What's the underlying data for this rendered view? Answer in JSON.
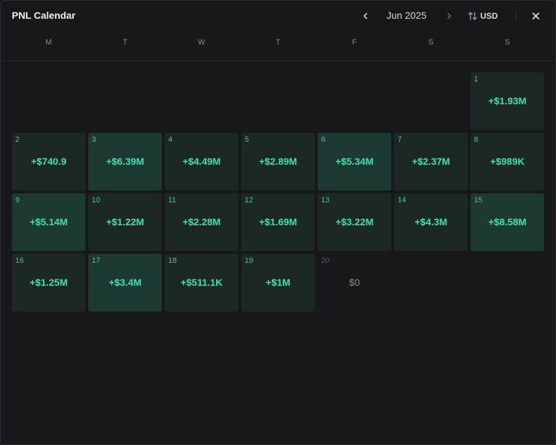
{
  "header": {
    "title": "PNL Calendar",
    "month": "Jun 2025",
    "currency": "USD"
  },
  "weekdays": [
    "M",
    "T",
    "W",
    "T",
    "F",
    "S",
    "S"
  ],
  "days": [
    {
      "day": "1",
      "value": "+$1.93M"
    },
    {
      "day": "2",
      "value": "+$740.9"
    },
    {
      "day": "3",
      "value": "+$6.39M"
    },
    {
      "day": "4",
      "value": "+$4.49M"
    },
    {
      "day": "5",
      "value": "+$2.89M"
    },
    {
      "day": "6",
      "value": "+$5.34M"
    },
    {
      "day": "7",
      "value": "+$2.37M"
    },
    {
      "day": "8",
      "value": "+$989K"
    },
    {
      "day": "9",
      "value": "+$5.14M"
    },
    {
      "day": "10",
      "value": "+$1.22M"
    },
    {
      "day": "11",
      "value": "+$2.28M"
    },
    {
      "day": "12",
      "value": "+$1.69M"
    },
    {
      "day": "13",
      "value": "+$3.22M"
    },
    {
      "day": "14",
      "value": "+$4.3M"
    },
    {
      "day": "15",
      "value": "+$8.58M"
    },
    {
      "day": "16",
      "value": "+$1.25M"
    },
    {
      "day": "17",
      "value": "+$3.4M"
    },
    {
      "day": "18",
      "value": "+$511.1K"
    },
    {
      "day": "19",
      "value": "+$1M"
    },
    {
      "day": "20",
      "value": "$0"
    }
  ],
  "colors": {
    "positive": "#3fe0ae",
    "cell_low": "#1b2824",
    "cell_high": "#1d3a32",
    "zero": "#8b8c90"
  }
}
